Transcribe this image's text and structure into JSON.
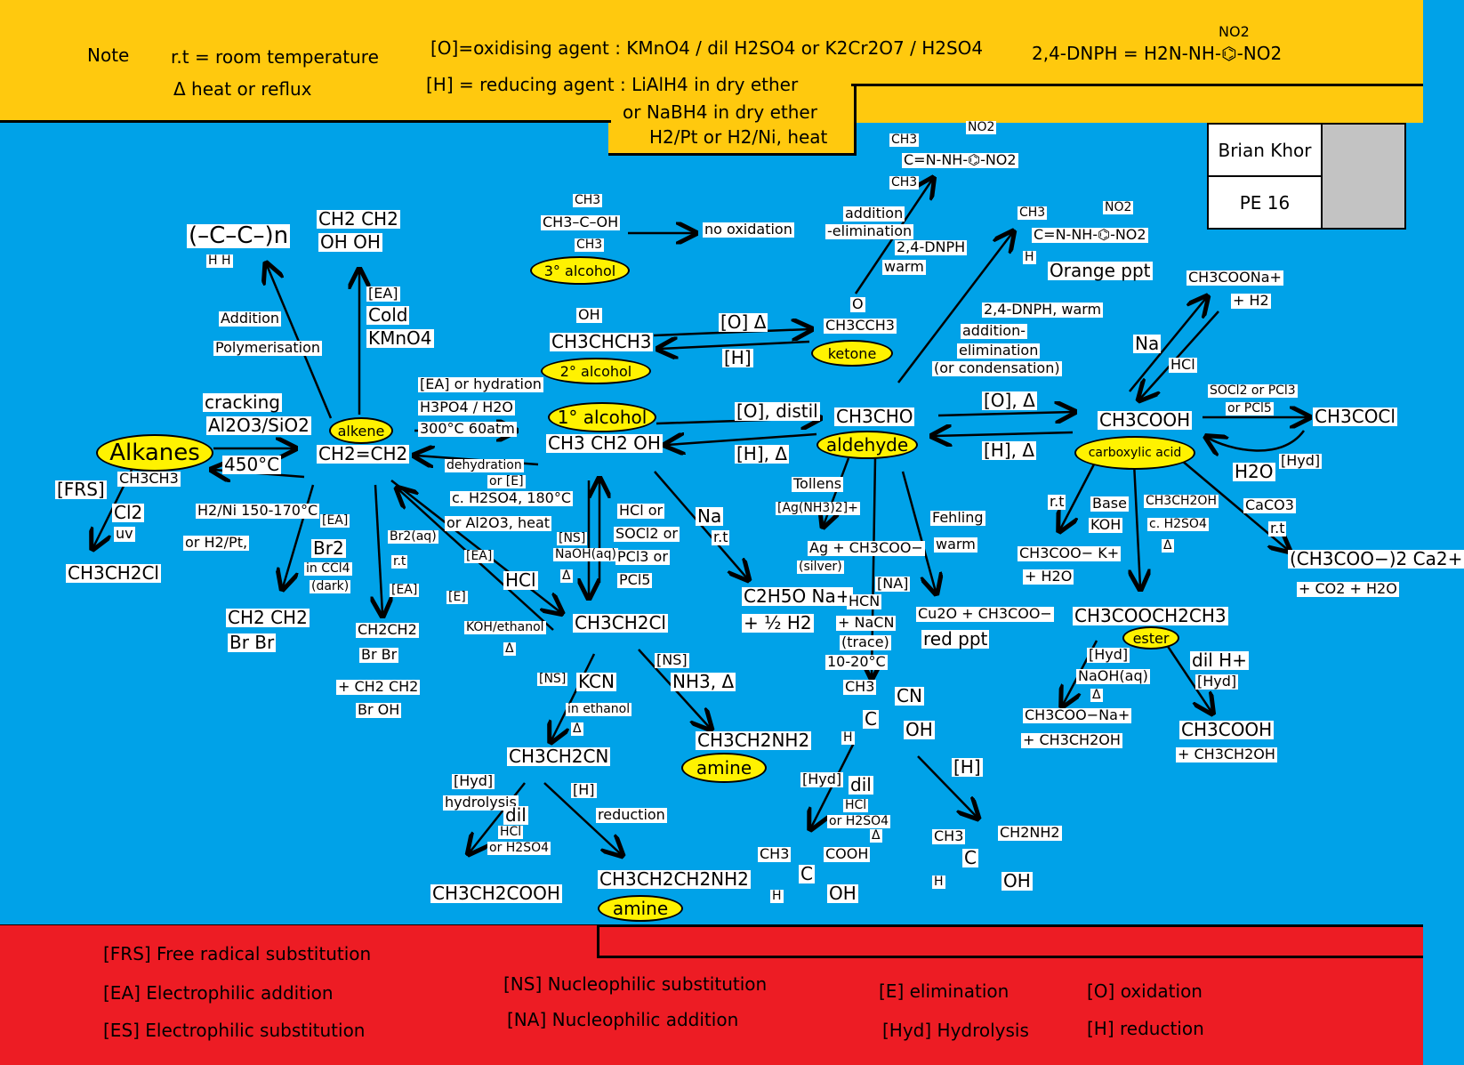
{
  "notes": {
    "note_label": "Note",
    "rt": "r.t = room temperature",
    "delta": "Δ  heat or reflux",
    "oxidising": "[O]=oxidising agent : KMnO4 / dil H2SO4 or K2Cr2O7 / H2SO4",
    "reducing1": "[H] = reducing agent :  LiAlH4 in dry ether",
    "reducing2": "or NaBH4  in  dry ether",
    "reducing3": "H2/Pt  or H2/Ni, heat",
    "dnph": "2,4-DNPH  =  H2N-NH-⌬-NO2",
    "dnph_no2_top": "NO2"
  },
  "name_box": {
    "name": "Brian Khor",
    "class": "PE 16"
  },
  "legend": {
    "frs": "[FRS]  Free radical substitution",
    "ea": "[EA]   Electrophilic addition",
    "es": "[ES]   Electrophilic substitution",
    "ns": "[NS]  Nucleophilic substitution",
    "na": "[NA]  Nucleophilic addition",
    "e": "[E]  elimination",
    "hyd": "[Hyd]  Hydrolysis",
    "o": "[O] oxidation",
    "h": "[H] reduction"
  },
  "nodes": {
    "alkanes": "Alkanes",
    "ethane": "CH3CH3",
    "chloroethane_frs": "CH3CH2Cl",
    "alkene_label": "alkene",
    "ethene": "CH2=CH2",
    "polymer": "(–C–C–)n",
    "polymer_h": "H  H",
    "diol_top": "CH2 CH2",
    "diol_bottom": "OH  OH",
    "dibromo_a_top": "CH2 CH2",
    "dibromo_a_bottom": "Br  Br",
    "dibromo_b_top": "CH2CH2",
    "dibromo_b_bottom": "Br  Br",
    "bromohydrin_top": "+ CH2 CH2",
    "bromohydrin_bottom": "Br  OH",
    "tert_alcohol_top": "CH3",
    "tert_alcohol_mid": "CH3–C–OH",
    "tert_alcohol_bot": "CH3",
    "tert_label": "3° alcohol",
    "no_oxidation": "no oxidation",
    "sec_alcohol_oh": "OH",
    "sec_alcohol": "CH3CHCH3",
    "sec_label": "2° alcohol",
    "ketone_o": "O",
    "ketone": "CH3CCH3",
    "ketone_label": "ketone",
    "prim_label": "1° alcohol",
    "ethanol": "CH3 CH2 OH",
    "ethanal": "CH3CHO",
    "aldehyde_label": "aldehyde",
    "acid": "CH3COOH",
    "acid_label": "carboxylic acid",
    "acyl_chloride": "CH3COCl",
    "sodium_salt": "CH3COONa+",
    "sodium_salt_h2": "+ H2",
    "hydrazone_k_ch3a": "CH3",
    "hydrazone_k": "C=N-NH-⌬-NO2",
    "hydrazone_k_ch3b": "CH3",
    "hydrazone_k_no2": "NO2",
    "hydrazone_a_ch3": "CH3",
    "hydrazone_a": "C=N-NH-⌬-NO2",
    "hydrazone_a_h": "H",
    "hydrazone_a_no2": "NO2",
    "orange_ppt": "Orange ppt",
    "chloroethane": "CH3CH2Cl",
    "sodium_ethoxide": "C2H5O Na+",
    "sodium_ethoxide_h2": "+ ½ H2",
    "silver": "Ag + CH3COO−",
    "silver_label": "(silver)",
    "cu2o": "Cu2O + CH3COO−",
    "red_ppt": "red ppt",
    "cyanohydrin_ch3": "CH3",
    "cyanohydrin_cn": "CN",
    "cyanohydrin_c": "C",
    "cyanohydrin_oh": "OH",
    "cyanohydrin_h": "H",
    "potassium_salt": "CH3COO− K+",
    "potassium_salt_h2o": "+ H2O",
    "calcium_salt": "(CH3COO−)2 Ca2+",
    "calcium_salt_2": "+ CO2 + H2O",
    "ester": "CH3COOCH2CH3",
    "ester_label": "ester",
    "ester_basic_product": "CH3COO−Na+",
    "ester_basic_product2": "+ CH3CH2OH",
    "ester_acid_product": "CH3COOH",
    "ester_acid_product2": "+ CH3CH2OH",
    "nitrile": "CH3CH2CN",
    "amine1": "CH3CH2NH2",
    "amine_label": "amine",
    "propanoic": "CH3CH2COOH",
    "amine2": "CH3CH2CH2NH2",
    "amine2_label": "amine",
    "hydroxy_acid_ch3": "CH3",
    "hydroxy_acid_cooh": "COOH",
    "hydroxy_acid_c": "C",
    "hydroxy_acid_h": "H",
    "hydroxy_acid_oh": "OH",
    "amino_alcohol_ch3": "CH3",
    "amino_alcohol_ch2nh2": "CH2NH2",
    "amino_alcohol_c": "C",
    "amino_alcohol_h": "H",
    "amino_alcohol_oh": "OH"
  },
  "conditions": {
    "frs": "[FRS]",
    "cl2": "Cl2",
    "uv": "uv",
    "cracking": "cracking",
    "al2o3": "Al2O3/SiO2",
    "t450": "450°C",
    "h2ni": "H2/Ni 150-170°C",
    "h2pt": "or H2/Pt,",
    "addition": "Addition",
    "polymerisation": "Polymerisation",
    "ea_cold": "[EA]",
    "cold": "Cold",
    "kmno4": "KMnO4",
    "ea_br2": "[EA]",
    "br2": "Br2",
    "in_ccl4": "in CCl4",
    "dark": "(dark)",
    "br2aq": "Br2(aq)",
    "rt_br": "r.t",
    "ea_br2aq": "[EA]",
    "ea_hcl": "[EA]",
    "hcl": "HCl",
    "e_koh": "[E]",
    "koh": "KOH/ethanol",
    "koh_delta": "Δ",
    "ea_hydration": "[EA] or hydration",
    "h3po4": "H3PO4 / H2O",
    "t300": "300°C 60atm",
    "dehydration": "dehydration",
    "or_e": "or [E]",
    "conc_h2so4": "c. H2SO4, 180°C",
    "al2o3_heat": "or Al2O3, heat",
    "ns_naoh": "[NS]",
    "naoh": "NaOH(aq)",
    "naoh_delta": "Δ",
    "hcl_or": "HCl or",
    "socl2": "SOCl2 or",
    "pcl3": "PCl3 or",
    "pcl5": "PCl5",
    "o_delta": "[O] Δ",
    "h_ketone": "[H]",
    "o_distill": "[O], distil",
    "h_delta": "[H], Δ",
    "na": "Na",
    "rt_na": "r.t",
    "tollens": "Tollens",
    "tollens_reagent": "[Ag(NH3)2]+",
    "fehling": "Fehling",
    "warm_fehling": "warm",
    "na_hcn": "[NA]",
    "hcn": "HCN",
    "nacn": "+ NaCN",
    "trace": "(trace)",
    "t10": "10-20°C",
    "addition_elim": "addition",
    "elimination": "-elimination",
    "dnph_warm": "2,4-DNPH",
    "warm": "warm",
    "dnph_warm2": "2,4-DNPH, warm",
    "addition2": "addition-",
    "elimination2": "elimination",
    "condensation": "(or condensation)",
    "o_acid": "[O], Δ",
    "h_acid": "[H], Δ",
    "socl2_acid": "SOCl2 or PCl3",
    "or_pcl5": "or PCl5",
    "h2o": "H2O",
    "hyd": "[Hyd]",
    "na_acid": "Na",
    "hcl_acid": "HCl",
    "rt_base": "r.t",
    "base": "Base",
    "koh_acid": "KOH",
    "ethanol_c": "CH3CH2OH",
    "c_h2so4": "c. H2SO4",
    "ester_delta": "Δ",
    "caco3": "CaCO3",
    "rt_caco3": "r.t",
    "hyd_naoh": "[Hyd]",
    "naoh_ester": "NaOH(aq)",
    "ester_delta2": "Δ",
    "dil_h": "dil H+",
    "hyd_acid": "[Hyd]",
    "ns_kcn": "[NS]",
    "kcn": "KCN",
    "in_ethanol": "in ethanol",
    "kcn_delta": "Δ",
    "ns_nh3": "[NS]",
    "nh3": "NH3, Δ",
    "hyd_nitrile": "[Hyd]",
    "hydrolysis": "hydrolysis",
    "dil_hcl": "dil",
    "hcl_n": "HCl",
    "or_h2so4": "or H2SO4",
    "h_reduction": "[H]",
    "reduction": "reduction",
    "hyd_cyan": "[Hyd]",
    "dil_cyan": "dil",
    "hcl_cyan": "HCl",
    "or_h2so4_cyan": "or H2SO4",
    "cyan_delta": "Δ",
    "h_cyan": "[H]"
  }
}
